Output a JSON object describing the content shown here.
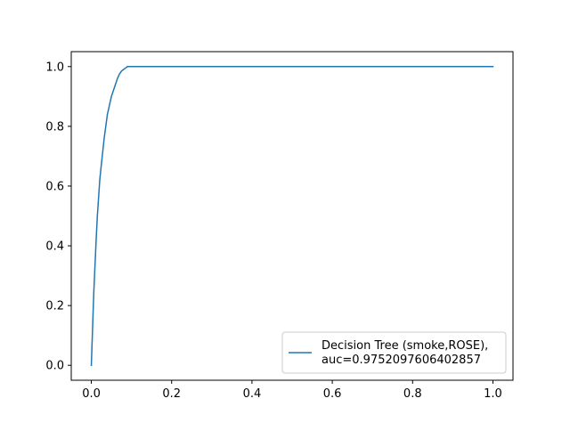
{
  "chart_data": {
    "type": "line",
    "title": "",
    "xlabel": "",
    "ylabel": "",
    "xlim": [
      -0.05,
      1.05
    ],
    "ylim": [
      -0.05,
      1.05
    ],
    "x_ticks": [
      0.0,
      0.2,
      0.4,
      0.6,
      0.8,
      1.0
    ],
    "x_tick_labels": [
      "0.0",
      "0.2",
      "0.4",
      "0.6",
      "0.8",
      "1.0"
    ],
    "y_ticks": [
      0.0,
      0.2,
      0.4,
      0.6,
      0.8,
      1.0
    ],
    "y_tick_labels": [
      "0.0",
      "0.2",
      "0.4",
      "0.6",
      "0.8",
      "1.0"
    ],
    "grid": false,
    "legend_position": "lower-right",
    "series": [
      {
        "name": "Decision Tree (smoke,ROSE),\nauc=0.9752097606402857",
        "legend_lines": [
          "Decision Tree (smoke,ROSE),",
          "auc=0.9752097606402857"
        ],
        "color": "#1f77b4",
        "x": [
          0.0,
          0.003,
          0.006,
          0.009,
          0.012,
          0.015,
          0.018,
          0.021,
          0.024,
          0.028,
          0.032,
          0.036,
          0.04,
          0.045,
          0.05,
          0.055,
          0.06,
          0.065,
          0.07,
          0.075,
          0.08,
          0.085,
          0.09,
          0.095,
          0.1,
          1.0
        ],
        "y": [
          0.0,
          0.12,
          0.24,
          0.33,
          0.42,
          0.5,
          0.56,
          0.62,
          0.66,
          0.71,
          0.76,
          0.8,
          0.84,
          0.87,
          0.9,
          0.92,
          0.94,
          0.96,
          0.975,
          0.985,
          0.99,
          0.995,
          1.0,
          1.0,
          1.0,
          1.0
        ]
      }
    ]
  }
}
